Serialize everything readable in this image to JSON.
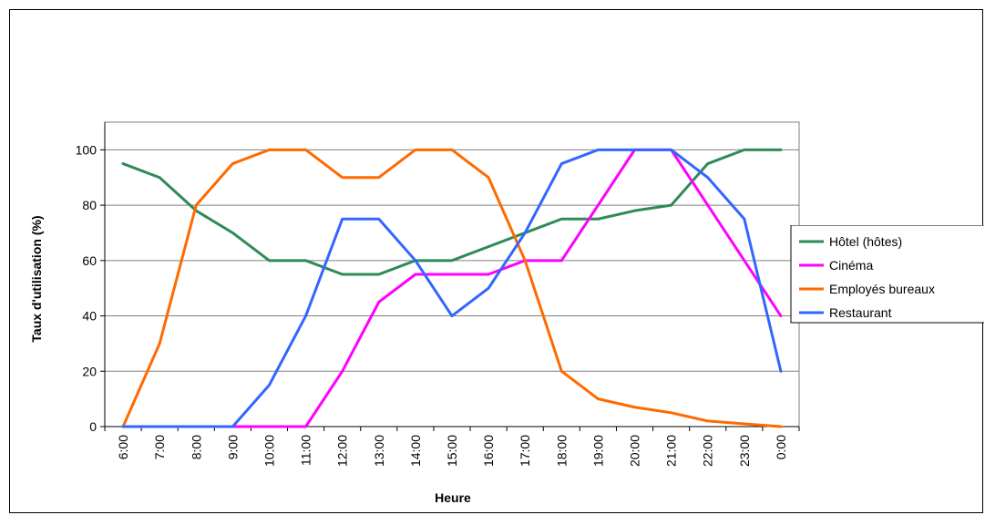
{
  "chart_data": {
    "type": "line",
    "title": "",
    "xlabel": "Heure",
    "ylabel": "Taux d'utilisation (%)",
    "ylim": [
      0,
      110
    ],
    "yticks": [
      0,
      20,
      40,
      60,
      80,
      100
    ],
    "grid": true,
    "legend_position": "right",
    "categories": [
      "6:00",
      "7:00",
      "8:00",
      "9:00",
      "10:00",
      "11:00",
      "12:00",
      "13:00",
      "14:00",
      "15:00",
      "16:00",
      "17:00",
      "18:00",
      "19:00",
      "20:00",
      "21:00",
      "22:00",
      "23:00",
      "0:00"
    ],
    "series": [
      {
        "name": "Hôtel (hôtes)",
        "color": "#2e8b57",
        "values": [
          95,
          90,
          78,
          70,
          60,
          60,
          55,
          55,
          60,
          60,
          65,
          70,
          75,
          75,
          78,
          80,
          95,
          100,
          100
        ]
      },
      {
        "name": "Cinéma",
        "color": "#ff00ff",
        "values": [
          0,
          0,
          0,
          0,
          0,
          0,
          20,
          45,
          55,
          55,
          55,
          60,
          60,
          80,
          100,
          100,
          80,
          60,
          40
        ]
      },
      {
        "name": "Employés bureaux",
        "color": "#ff6a00",
        "values": [
          0,
          30,
          80,
          95,
          100,
          100,
          90,
          90,
          100,
          100,
          90,
          60,
          20,
          10,
          7,
          5,
          2,
          1,
          0
        ]
      },
      {
        "name": "Restaurant",
        "color": "#3366ff",
        "values": [
          0,
          0,
          0,
          0,
          15,
          40,
          75,
          75,
          60,
          40,
          50,
          70,
          95,
          100,
          100,
          100,
          90,
          75,
          20
        ]
      }
    ]
  }
}
